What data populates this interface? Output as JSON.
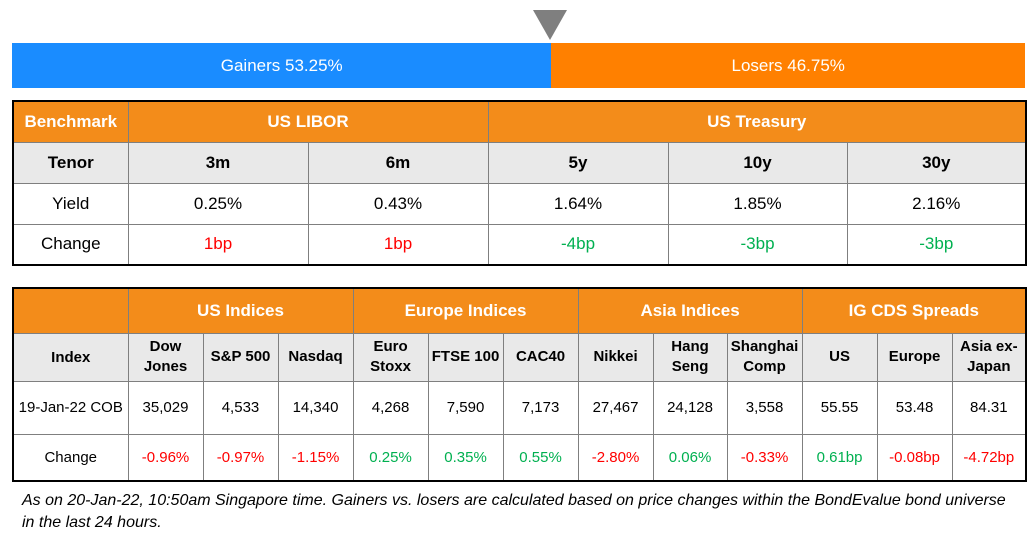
{
  "bar": {
    "gainers_label": "Gainers 53.25%",
    "losers_label": "Losers 46.75%",
    "gainers_share": 53.25,
    "colors": {
      "gainers": "#1a8cff",
      "losers": "#ff8000"
    }
  },
  "rates": {
    "benchmark_label": "Benchmark",
    "libor_label": "US LIBOR",
    "treasury_label": "US Treasury",
    "tenor_label": "Tenor",
    "yield_label": "Yield",
    "change_label": "Change",
    "columns": [
      {
        "tenor": "3m",
        "yield": "0.25%",
        "change": "1bp"
      },
      {
        "tenor": "6m",
        "yield": "0.43%",
        "change": "1bp"
      },
      {
        "tenor": "5y",
        "yield": "1.64%",
        "change": "-4bp"
      },
      {
        "tenor": "10y",
        "yield": "1.85%",
        "change": "-3bp"
      },
      {
        "tenor": "30y",
        "yield": "2.16%",
        "change": "-3bp"
      }
    ]
  },
  "indices": {
    "groups": [
      "US Indices",
      "Europe Indices",
      "Asia Indices",
      "IG CDS Spreads"
    ],
    "index_label": "Index",
    "date_label": "19-Jan-22 COB",
    "change_label": "Change",
    "items": [
      {
        "name_1": "Dow",
        "name_2": "Jones",
        "value": "35,029",
        "change": "-0.96%"
      },
      {
        "name_1": "S&P 500",
        "name_2": "",
        "value": "4,533",
        "change": "-0.97%"
      },
      {
        "name_1": "Nasdaq",
        "name_2": "",
        "value": "14,340",
        "change": "-1.15%"
      },
      {
        "name_1": "Euro",
        "name_2": "Stoxx",
        "value": "4,268",
        "change": "0.25%"
      },
      {
        "name_1": "FTSE 100",
        "name_2": "",
        "value": "7,590",
        "change": "0.35%"
      },
      {
        "name_1": "CAC40",
        "name_2": "",
        "value": "7,173",
        "change": "0.55%"
      },
      {
        "name_1": "Nikkei",
        "name_2": "",
        "value": "27,467",
        "change": "-2.80%"
      },
      {
        "name_1": "Hang",
        "name_2": "Seng",
        "value": "24,128",
        "change": "0.06%"
      },
      {
        "name_1": "Shanghai",
        "name_2": "Comp",
        "value": "3,558",
        "change": "-0.33%"
      },
      {
        "name_1": "US",
        "name_2": "",
        "value": "55.55",
        "change": "0.61bp"
      },
      {
        "name_1": "Europe",
        "name_2": "",
        "value": "53.48",
        "change": "-0.08bp"
      },
      {
        "name_1": "Asia ex-",
        "name_2": "Japan",
        "value": "84.31",
        "change": "-4.72bp"
      }
    ]
  },
  "footnote": "As on 20-Jan-22, 10:50am Singapore time. Gainers vs. losers are calculated based on price changes within the BondEvalue bond universe in the last 24 hours."
}
